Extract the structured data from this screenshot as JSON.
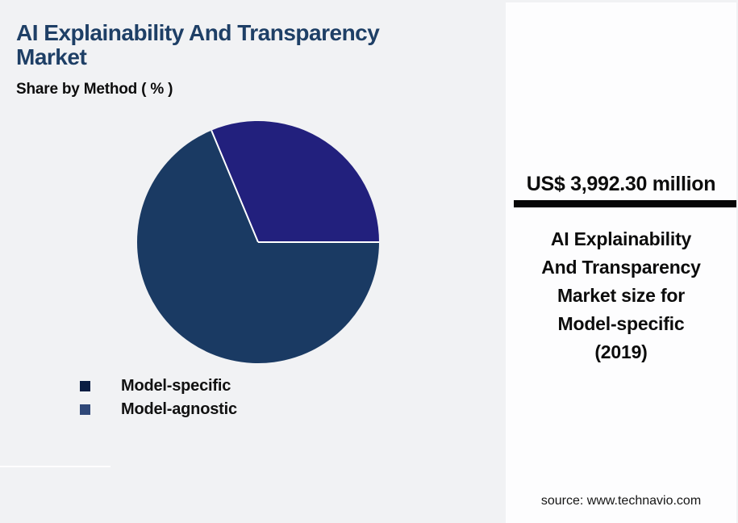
{
  "page": {
    "background_color": "#f1f2f4",
    "panel_background_color": "#fdfdfe"
  },
  "header": {
    "title": "AI Explainability And Transparency Market",
    "title_lines": [
      "AI Explainability And Transparency",
      "Market"
    ],
    "title_color": "#1e3f66",
    "subtitle": "Share by Method ( % )"
  },
  "chart_data": {
    "type": "pie",
    "title": "Share by Method ( % )",
    "categories": [
      "Model-specific",
      "Model-agnostic"
    ],
    "series": [
      {
        "name": "Model-specific",
        "value": 68.7,
        "color": "#1a3a63",
        "legend_color": "#0a1d42"
      },
      {
        "name": "Model-agnostic",
        "value": 31.3,
        "color": "#22207d",
        "legend_color": "#2f4878"
      }
    ],
    "start_angle_deg": 0,
    "direction": "clockwise",
    "divider_color": "#ffffff",
    "legend_position": "bottom-left",
    "values_unit": "percent"
  },
  "panel": {
    "value": "US$ 3,992.30 million",
    "underline_color": "#070707",
    "description": "AI Explainability And Transparency Market size for Model-specific (2019)",
    "description_lines": [
      "AI Explainability",
      "And Transparency",
      "Market size for",
      "Model-specific",
      "(2019)"
    ],
    "source": "source: www.technavio.com"
  }
}
